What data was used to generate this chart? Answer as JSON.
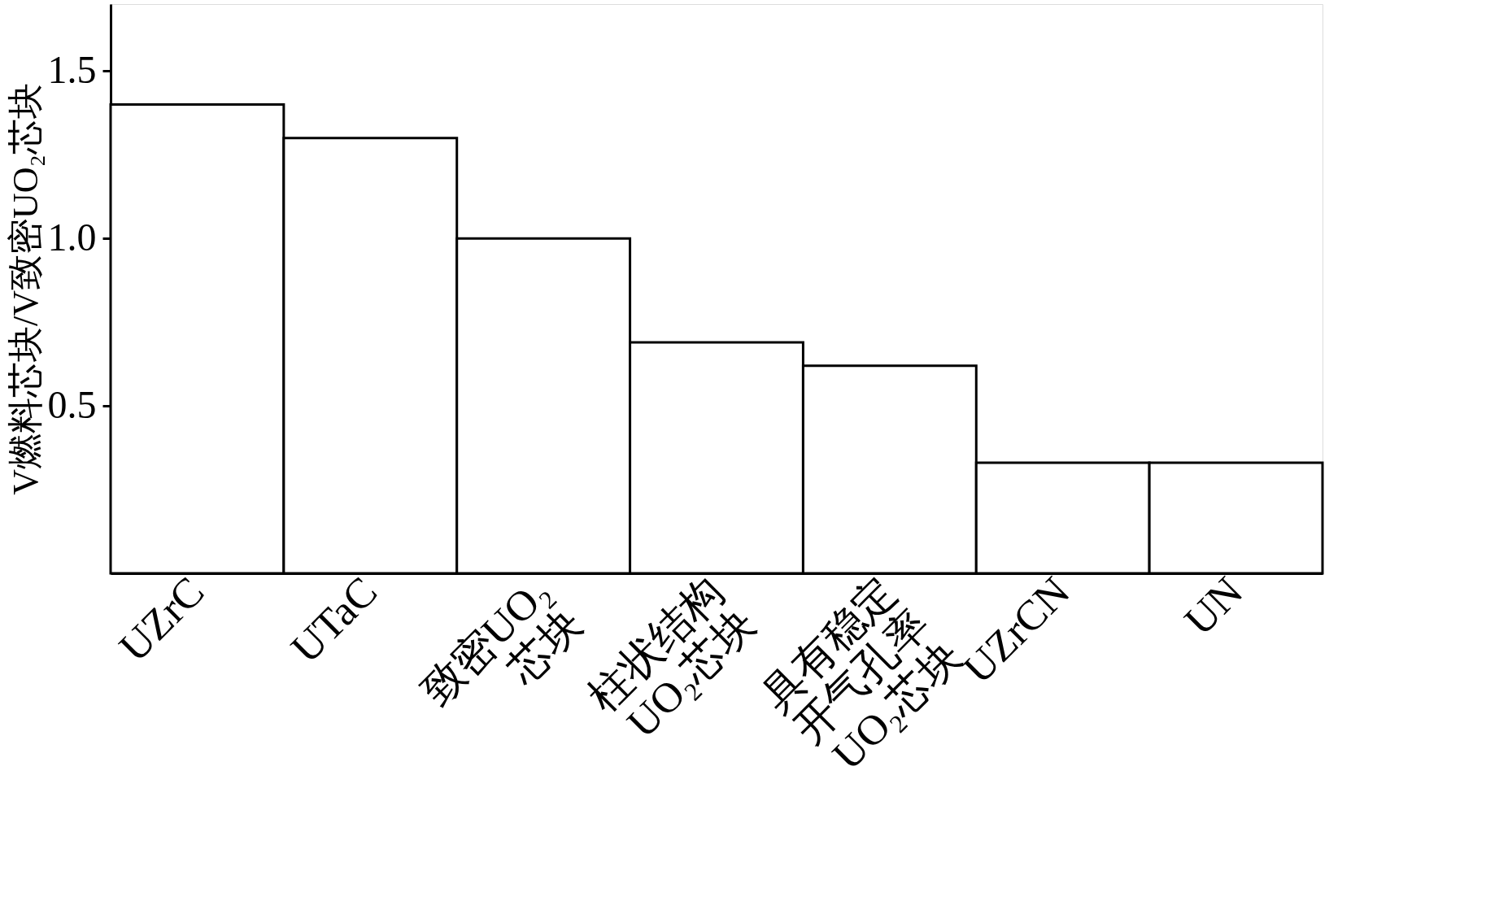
{
  "chart_data": {
    "type": "bar",
    "ylabel": "V燃料芯块/V致密UO₂芯块",
    "categories": [
      "UZrC",
      "UTaC",
      "致密UO₂芯块",
      "柱状结构UO₂芯块",
      "具有稳定开气孔率UO₂芯块",
      "UZrCN",
      "UN"
    ],
    "values": [
      1.4,
      1.3,
      1.0,
      0.69,
      0.62,
      0.33,
      0.33
    ],
    "color": "#ffffff",
    "ylim": [
      0,
      1.7
    ],
    "yticks": [
      0.5,
      {
        "value": 1,
        "label": "1.0"
      },
      1.5
    ],
    "grid": false
  }
}
